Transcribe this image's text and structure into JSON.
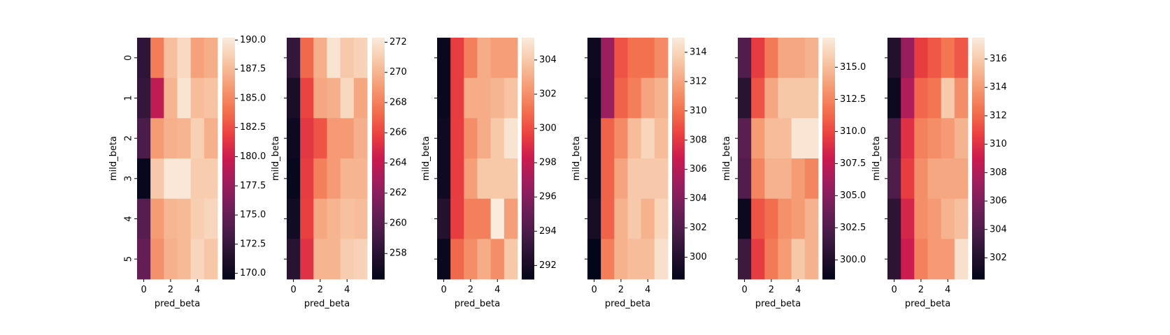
{
  "chart_data": [
    {
      "type": "heatmap",
      "xlabel": "pred_beta",
      "ylabel": "mild_beta",
      "x_ticks": [
        "0",
        "2",
        "4"
      ],
      "y_ticks": [
        "0",
        "1",
        "2",
        "3",
        "4",
        "5"
      ],
      "vmin": 169.5,
      "vmax": 190.2,
      "colorbar_ticks": [
        "170.0",
        "172.5",
        "175.0",
        "177.5",
        "180.0",
        "182.5",
        "185.0",
        "187.5",
        "190.0"
      ],
      "colorbar_tick_values": [
        170.0,
        172.5,
        175.0,
        177.5,
        180.0,
        182.5,
        185.0,
        187.5,
        190.0
      ],
      "values": [
        [
          172.0,
          184.5,
          187.8,
          189.2,
          186.3,
          186.9
        ],
        [
          172.3,
          179.3,
          187.2,
          189.8,
          187.7,
          188.0
        ],
        [
          173.5,
          186.0,
          187.0,
          187.2,
          188.7,
          187.0
        ],
        [
          169.8,
          188.3,
          190.0,
          190.0,
          188.5,
          188.5
        ],
        [
          174.2,
          186.0,
          187.3,
          187.5,
          188.6,
          189.0
        ],
        [
          175.0,
          185.5,
          187.0,
          187.5,
          189.0,
          188.2
        ]
      ]
    },
    {
      "type": "heatmap",
      "xlabel": "pred_beta",
      "ylabel": "mild_beta",
      "x_ticks": [
        "0",
        "2",
        "4"
      ],
      "y_ticks": [
        "0",
        "1",
        "2",
        "3",
        "4",
        "5"
      ],
      "vmin": 256.3,
      "vmax": 272.3,
      "colorbar_ticks": [
        "258",
        "260",
        "262",
        "264",
        "266",
        "268",
        "270",
        "272"
      ],
      "colorbar_tick_values": [
        258,
        260,
        262,
        264,
        266,
        268,
        270,
        272
      ],
      "values": [
        [
          258.5,
          267.2,
          269.8,
          272.0,
          270.8,
          271.2
        ],
        [
          257.3,
          266.0,
          269.5,
          269.8,
          271.5,
          269.5
        ],
        [
          256.8,
          265.5,
          266.5,
          269.0,
          269.0,
          269.8
        ],
        [
          256.5,
          265.7,
          268.0,
          269.0,
          270.0,
          270.0
        ],
        [
          257.0,
          265.8,
          269.5,
          270.0,
          270.5,
          270.3
        ],
        [
          258.0,
          265.3,
          270.0,
          270.0,
          271.0,
          271.2
        ]
      ]
    },
    {
      "type": "heatmap",
      "xlabel": "pred_beta",
      "ylabel": "mild_beta",
      "x_ticks": [
        "0",
        "2",
        "4"
      ],
      "y_ticks": [
        "0",
        "1",
        "2",
        "3",
        "4",
        "5"
      ],
      "vmin": 291.2,
      "vmax": 305.3,
      "colorbar_ticks": [
        "292",
        "294",
        "296",
        "298",
        "300",
        "302",
        "304"
      ],
      "colorbar_tick_values": [
        292,
        294,
        296,
        298,
        300,
        302,
        304
      ],
      "values": [
        [
          291.5,
          299.5,
          301.5,
          303.0,
          302.5,
          302.5
        ],
        [
          291.5,
          299.5,
          303.0,
          303.0,
          303.3,
          303.8
        ],
        [
          291.7,
          299.5,
          302.0,
          303.0,
          304.0,
          305.0
        ],
        [
          291.7,
          299.5,
          302.5,
          304.0,
          304.0,
          304.0
        ],
        [
          292.5,
          299.5,
          301.5,
          301.5,
          305.3,
          302.5
        ],
        [
          291.5,
          300.8,
          302.0,
          303.0,
          302.0,
          304.0
        ]
      ]
    },
    {
      "type": "heatmap",
      "xlabel": "pred_beta",
      "ylabel": "mild_beta",
      "x_ticks": [
        "0",
        "2",
        "4"
      ],
      "y_ticks": [
        "0",
        "1",
        "2",
        "3",
        "4",
        "5"
      ],
      "vmin": 298.5,
      "vmax": 315.0,
      "colorbar_ticks": [
        "300",
        "302",
        "304",
        "306",
        "308",
        "310",
        "312",
        "314"
      ],
      "colorbar_tick_values": [
        300,
        302,
        304,
        306,
        308,
        310,
        312,
        314
      ],
      "values": [
        [
          299.0,
          305.0,
          309.0,
          310.0,
          310.0,
          311.0
        ],
        [
          298.8,
          305.0,
          309.5,
          310.5,
          312.0,
          312.5
        ],
        [
          299.0,
          309.5,
          311.0,
          313.0,
          314.0,
          313.0
        ],
        [
          299.0,
          309.5,
          312.0,
          313.5,
          313.5,
          313.5
        ],
        [
          299.5,
          309.5,
          312.5,
          313.5,
          312.5,
          314.0
        ],
        [
          298.5,
          310.5,
          312.5,
          313.0,
          313.0,
          314.5
        ]
      ]
    },
    {
      "type": "heatmap",
      "xlabel": "pred_beta",
      "ylabel": "mild_beta",
      "x_ticks": [
        "0",
        "2",
        "4"
      ],
      "y_ticks": [
        "0",
        "1",
        "2",
        "3",
        "4",
        "5"
      ],
      "vmin": 298.5,
      "vmax": 317.3,
      "colorbar_ticks": [
        "300.0",
        "302.5",
        "305.0",
        "307.5",
        "310.0",
        "312.5",
        "315.0"
      ],
      "colorbar_tick_values": [
        300.0,
        302.5,
        305.0,
        307.5,
        310.0,
        312.5,
        315.0
      ],
      "values": [
        [
          302.5,
          309.5,
          312.0,
          314.0,
          314.0,
          314.5
        ],
        [
          300.5,
          310.5,
          314.0,
          315.5,
          315.5,
          315.5
        ],
        [
          303.0,
          313.5,
          315.0,
          315.0,
          317.0,
          317.0
        ],
        [
          302.5,
          312.5,
          314.5,
          314.5,
          313.5,
          312.5
        ],
        [
          299.0,
          310.5,
          311.5,
          313.0,
          313.5,
          314.5
        ],
        [
          301.5,
          309.5,
          312.0,
          313.5,
          315.5,
          314.5
        ]
      ]
    },
    {
      "type": "heatmap",
      "xlabel": "pred_beta",
      "ylabel": "mild_beta",
      "x_ticks": [
        "0",
        "2",
        "4"
      ],
      "y_ticks": [
        "0",
        "1",
        "2",
        "3",
        "4",
        "5"
      ],
      "vmin": 300.5,
      "vmax": 317.5,
      "colorbar_ticks": [
        "302",
        "304",
        "306",
        "308",
        "310",
        "312",
        "314",
        "316"
      ],
      "colorbar_tick_values": [
        302,
        304,
        306,
        308,
        310,
        312,
        314,
        316
      ],
      "values": [
        [
          302.0,
          307.0,
          310.5,
          311.5,
          312.5,
          311.5
        ],
        [
          301.0,
          308.0,
          312.0,
          312.5,
          316.0,
          313.5
        ],
        [
          303.5,
          310.0,
          313.0,
          313.5,
          314.0,
          315.0
        ],
        [
          304.0,
          310.5,
          313.5,
          314.5,
          314.5,
          314.5
        ],
        [
          302.5,
          309.5,
          313.5,
          314.0,
          315.0,
          315.5
        ],
        [
          302.5,
          309.0,
          313.0,
          314.0,
          314.0,
          317.0
        ]
      ]
    }
  ]
}
